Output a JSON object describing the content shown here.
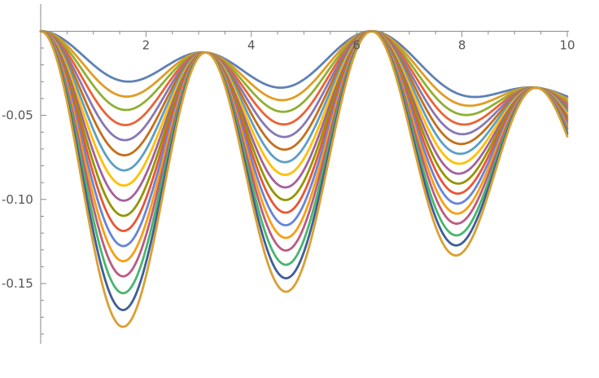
{
  "chart_data": {
    "type": "line",
    "title": "",
    "xlabel": "",
    "ylabel": "",
    "xlim": [
      0,
      10
    ],
    "ylim": [
      -0.18,
      0.005
    ],
    "grid": false,
    "legend": "none",
    "x_ticks": [
      {
        "value": 2,
        "label": "2"
      },
      {
        "value": 4,
        "label": "4"
      },
      {
        "value": 6,
        "label": "6"
      },
      {
        "value": 8,
        "label": "8"
      },
      {
        "value": 10,
        "label": "10"
      }
    ],
    "y_ticks": [
      {
        "value": -0.05,
        "label": "-0.05"
      },
      {
        "value": -0.1,
        "label": "-0.10"
      },
      {
        "value": -0.15,
        "label": "-0.15"
      }
    ],
    "x_minor_step": 0.5,
    "y_minor_step": 0.01,
    "series_model": "y = -(A1 + (A2 - A1)*(1 - x/10)) * sin(x)^2 - 0.0055*(1 - cos(x)) - (0.05/6)*x*(1 - cos(x))/2",
    "series": [
      {
        "min1": -0.026,
        "min3": -0.022,
        "color": "#5E81B5"
      },
      {
        "min1": -0.035,
        "min3": -0.028,
        "color": "#E19C24"
      },
      {
        "min1": -0.043,
        "min3": -0.034,
        "color": "#8FB032"
      },
      {
        "min1": -0.052,
        "min3": -0.04,
        "color": "#EB6235"
      },
      {
        "min1": -0.061,
        "min3": -0.046,
        "color": "#8778B3"
      },
      {
        "min1": -0.07,
        "min3": -0.052,
        "color": "#C56E1A"
      },
      {
        "min1": -0.079,
        "min3": -0.058,
        "color": "#5D9EC7"
      },
      {
        "min1": -0.088,
        "min3": -0.064,
        "color": "#FFBF00"
      },
      {
        "min1": -0.097,
        "min3": -0.07,
        "color": "#A5609D"
      },
      {
        "min1": -0.106,
        "min3": -0.076,
        "color": "#929600"
      },
      {
        "min1": -0.115,
        "min3": -0.082,
        "color": "#E95536"
      },
      {
        "min1": -0.124,
        "min3": -0.088,
        "color": "#6685D9"
      },
      {
        "min1": -0.133,
        "min3": -0.094,
        "color": "#F89F13"
      },
      {
        "min1": -0.142,
        "min3": -0.1,
        "color": "#BC5B80"
      },
      {
        "min1": -0.152,
        "min3": -0.107,
        "color": "#47B66D"
      },
      {
        "min1": -0.162,
        "min3": -0.113,
        "color": "#3E5E99"
      },
      {
        "min1": -0.172,
        "min3": -0.119,
        "color": "#D9A032"
      }
    ]
  }
}
